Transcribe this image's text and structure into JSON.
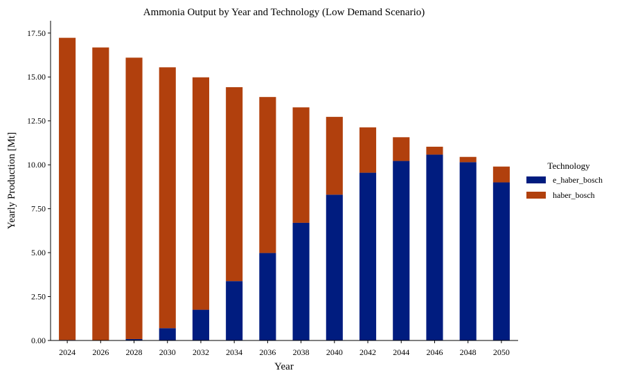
{
  "chart_data": {
    "type": "bar",
    "stacked": true,
    "title": "Ammonia Output by Year and Technology (Low Demand Scenario)",
    "xlabel": "Year",
    "ylabel": "Yearly Production [Mt]",
    "ylim": [
      0,
      18.2
    ],
    "yticks": [
      0,
      2.5,
      5,
      7.5,
      10,
      12.5,
      15,
      17.5
    ],
    "ytick_labels": [
      "0.00",
      "2.50",
      "5.00",
      "7.50",
      "10.00",
      "12.50",
      "15.00",
      "17.50"
    ],
    "grid": false,
    "legend": {
      "title": "Technology",
      "position": "right"
    },
    "categories": [
      "2024",
      "2026",
      "2028",
      "2030",
      "2032",
      "2034",
      "2036",
      "2038",
      "2040",
      "2042",
      "2044",
      "2046",
      "2048",
      "2050"
    ],
    "series": [
      {
        "name": "e_haber_bosch",
        "color": "#001c7f",
        "values": [
          0.03,
          0.0,
          0.08,
          0.7,
          1.75,
          3.38,
          4.98,
          6.7,
          8.3,
          9.55,
          10.22,
          10.58,
          10.15,
          9.0
        ]
      },
      {
        "name": "haber_bosch",
        "color": "#b1400d",
        "values": [
          17.2,
          16.68,
          16.02,
          14.85,
          13.23,
          11.04,
          8.88,
          6.57,
          4.43,
          2.58,
          1.35,
          0.45,
          0.3,
          0.9
        ]
      }
    ]
  }
}
